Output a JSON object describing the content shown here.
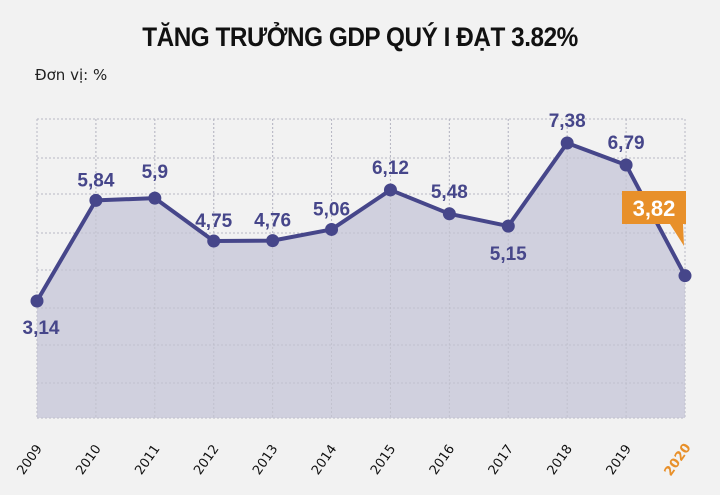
{
  "title": "TĂNG TRƯỞNG GDP QUÝ I ĐẠT 3.82%",
  "unit_label": "Đơn vị: %",
  "colors": {
    "background": "#f2f2f2",
    "line": "#46468a",
    "area_fill": "#d0d0de",
    "grid": "#b8b8c4",
    "highlight": "#e8902a",
    "highlight_text": "#ffffff"
  },
  "chart_data": {
    "type": "area",
    "title": "TĂNG TRƯỞNG GDP QUÝ I ĐẠT 3.82%",
    "subtitle": "Đơn vị: %",
    "xlabel": "",
    "ylabel": "%",
    "categories": [
      "2009",
      "2010",
      "2011",
      "2012",
      "2013",
      "2014",
      "2015",
      "2016",
      "2017",
      "2018",
      "2019",
      "2020"
    ],
    "values": [
      3.14,
      5.84,
      5.9,
      4.75,
      4.76,
      5.06,
      6.12,
      5.48,
      5.15,
      7.38,
      6.79,
      3.82
    ],
    "data_labels": [
      "3,14",
      "5,84",
      "5,9",
      "4,75",
      "4,76",
      "5,06",
      "6,12",
      "5,48",
      "5,15",
      "7,38",
      "6,79",
      "3,82"
    ],
    "highlight": {
      "category": "2020",
      "label": "3,82"
    },
    "grid": true,
    "legend": "none",
    "x_tick_rotation": -55
  }
}
